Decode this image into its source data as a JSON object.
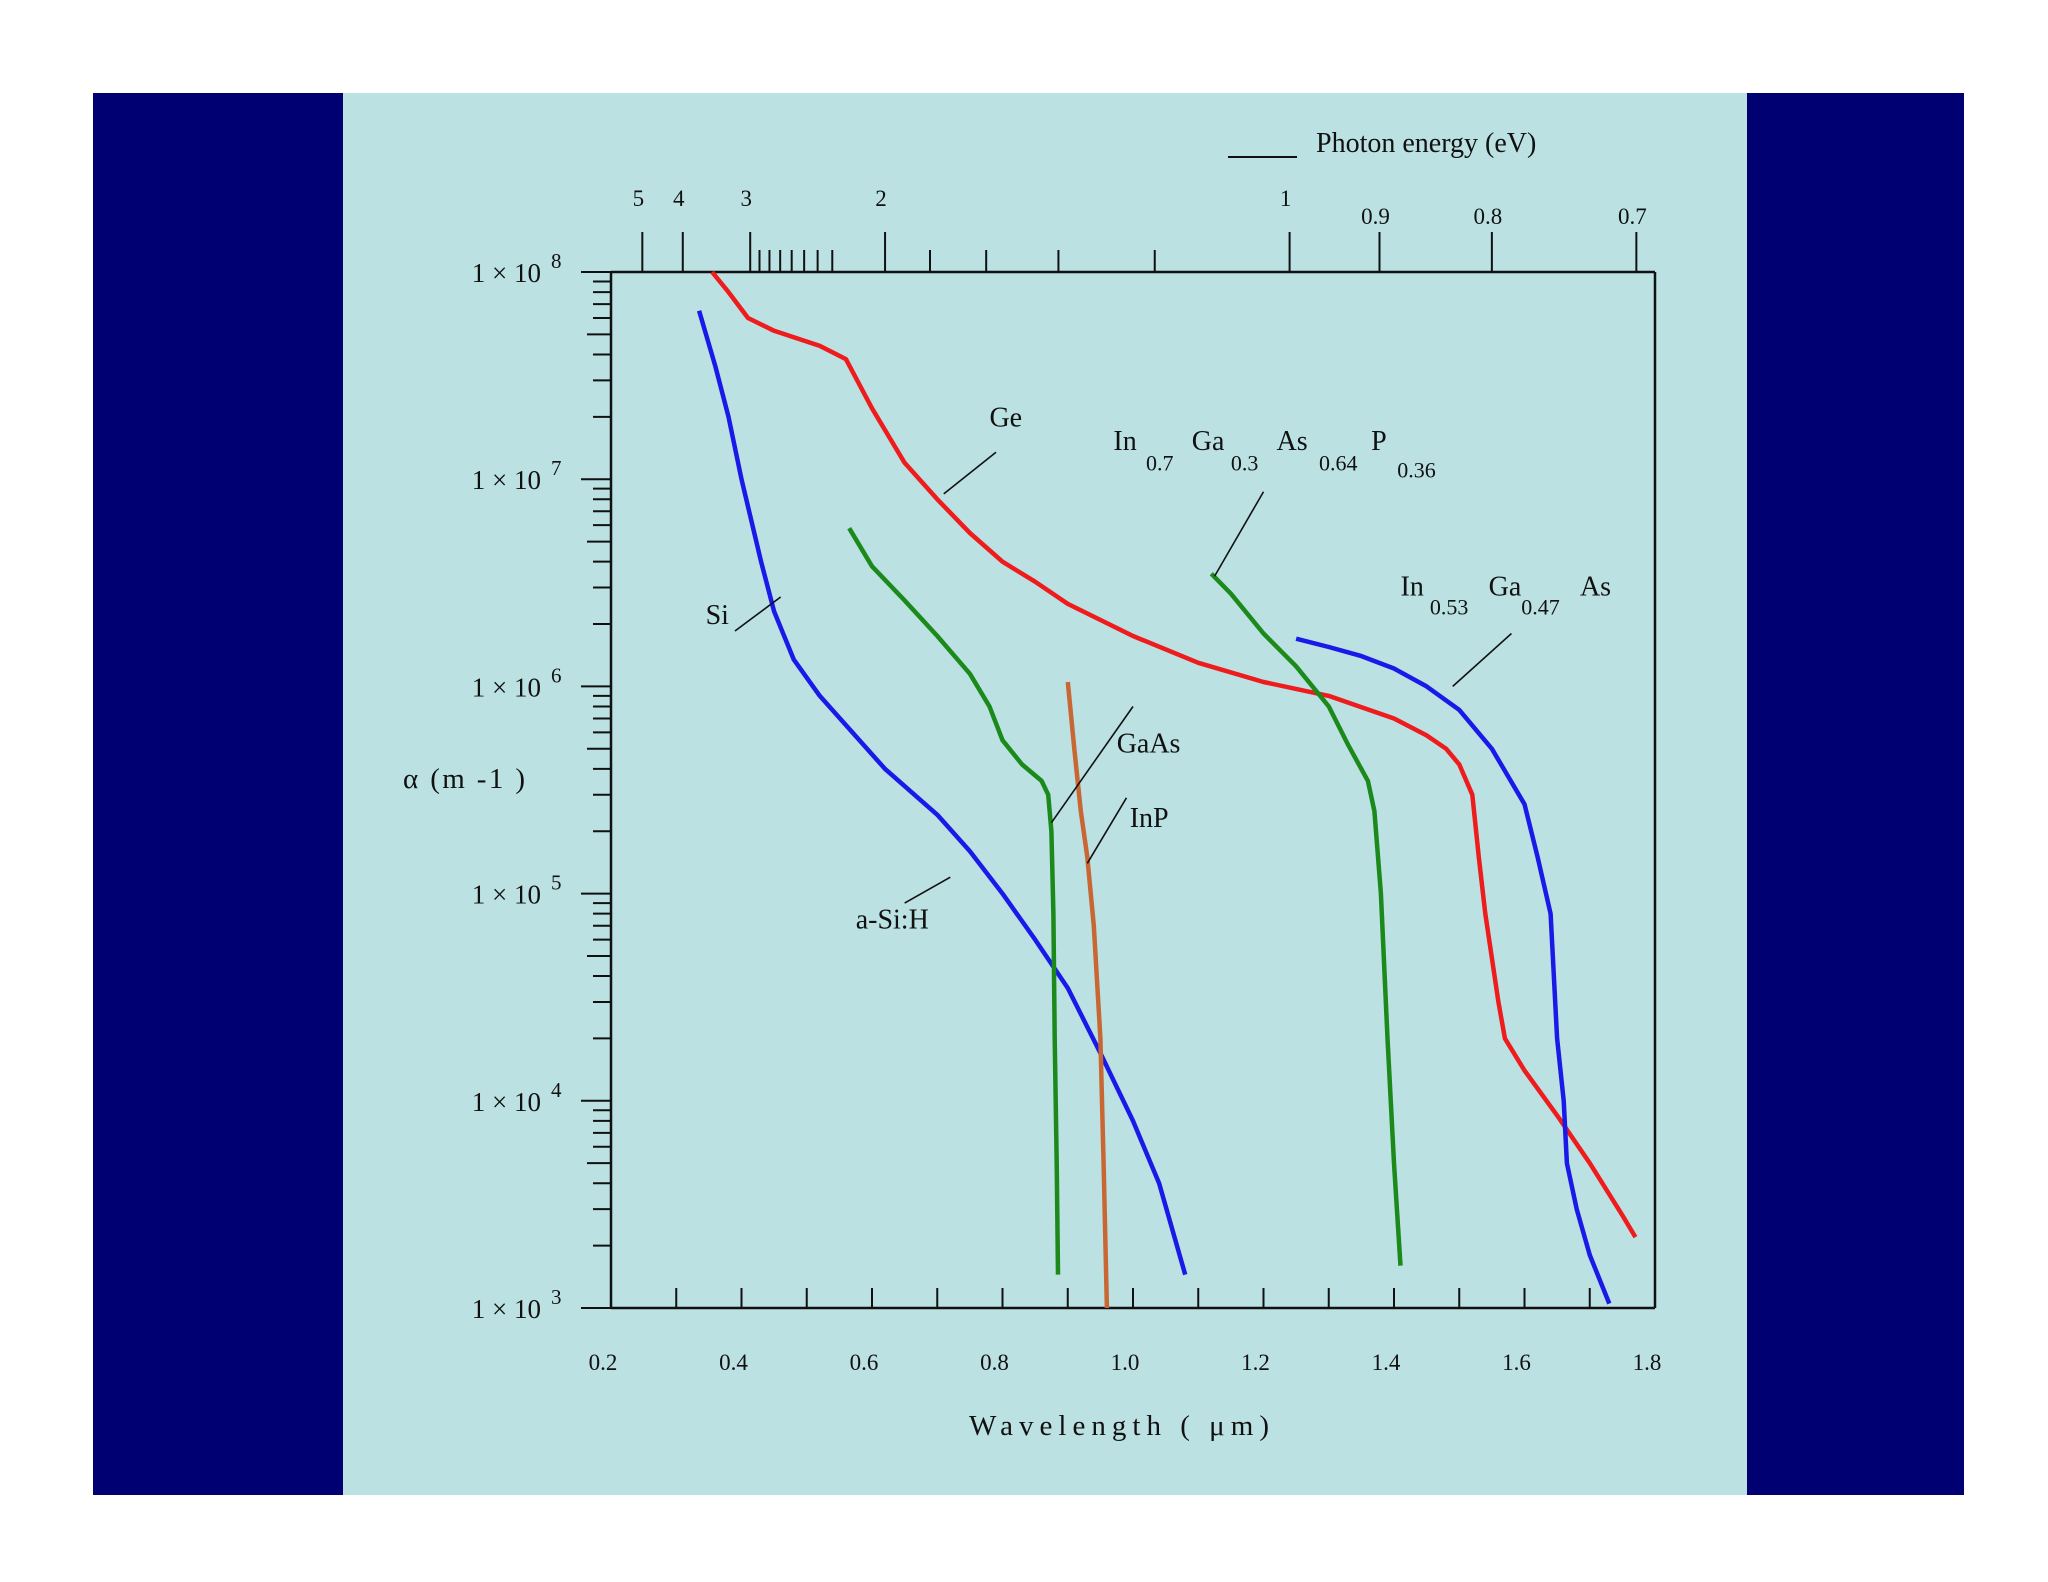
{
  "chart_data": {
    "type": "line",
    "xlabel": "Wavelength ( μm)",
    "ylabel": "α (m -1 )",
    "xlim": [
      0.2,
      1.8
    ],
    "ylim": [
      1000,
      100000000
    ],
    "yscale": "log",
    "grid": false,
    "x_ticks": [
      "0.2",
      "0.4",
      "0.6",
      "0.8",
      "1.0",
      "1.2",
      "1.4",
      "1.6",
      "1.8"
    ],
    "y_ticks": [
      {
        "value": 1000,
        "mantissa": "1 × 10",
        "exp": "3"
      },
      {
        "value": 10000,
        "mantissa": "1 × 10",
        "exp": "4"
      },
      {
        "value": 100000,
        "mantissa": "1 × 10",
        "exp": "5"
      },
      {
        "value": 1000000,
        "mantissa": "1 × 10",
        "exp": "6"
      },
      {
        "value": 10000000,
        "mantissa": "1 × 10",
        "exp": "7"
      },
      {
        "value": 100000000,
        "mantissa": "1 × 10",
        "exp": "8"
      }
    ],
    "top_axis": {
      "label": "Photon energy (eV)",
      "labeled_ticks": [
        {
          "ev": 5,
          "text": "5"
        },
        {
          "ev": 4,
          "text": "4"
        },
        {
          "ev": 3,
          "text": "3"
        },
        {
          "ev": 2,
          "text": "2"
        },
        {
          "ev": 1,
          "text": "1"
        },
        {
          "ev": 0.9,
          "text": "0.9"
        },
        {
          "ev": 0.8,
          "text": "0.8"
        },
        {
          "ev": 0.7,
          "text": "0.7"
        }
      ],
      "minor_ticks_ev": [
        2.9,
        2.8,
        2.7,
        2.6,
        2.5,
        2.4,
        2.3,
        1.8,
        1.6,
        1.4,
        1.2
      ]
    },
    "series": [
      {
        "name": "Ge",
        "color": "#ee1c1c",
        "points": [
          [
            0.355,
            100000000
          ],
          [
            0.38,
            80000000
          ],
          [
            0.41,
            60000000
          ],
          [
            0.45,
            52000000
          ],
          [
            0.52,
            44000000
          ],
          [
            0.56,
            38000000
          ],
          [
            0.6,
            22000000
          ],
          [
            0.65,
            12000000
          ],
          [
            0.7,
            8000000
          ],
          [
            0.75,
            5500000
          ],
          [
            0.8,
            4000000
          ],
          [
            0.85,
            3200000
          ],
          [
            0.9,
            2500000
          ],
          [
            1.0,
            1750000
          ],
          [
            1.1,
            1300000
          ],
          [
            1.2,
            1050000
          ],
          [
            1.3,
            900000
          ],
          [
            1.4,
            700000
          ],
          [
            1.45,
            580000
          ],
          [
            1.48,
            500000
          ],
          [
            1.5,
            420000
          ],
          [
            1.52,
            300000
          ],
          [
            1.53,
            150000
          ],
          [
            1.54,
            80000
          ],
          [
            1.56,
            30000
          ],
          [
            1.57,
            20000
          ],
          [
            1.6,
            14000
          ],
          [
            1.65,
            8500
          ],
          [
            1.7,
            5000
          ],
          [
            1.75,
            2800
          ],
          [
            1.77,
            2200
          ]
        ]
      },
      {
        "name": "Si",
        "color": "#1a1ae8",
        "points": [
          [
            0.335,
            65000000
          ],
          [
            0.36,
            35000000
          ],
          [
            0.38,
            20000000
          ],
          [
            0.4,
            10000000
          ],
          [
            0.43,
            4000000
          ],
          [
            0.45,
            2300000
          ],
          [
            0.48,
            1350000
          ],
          [
            0.52,
            900000
          ],
          [
            0.57,
            600000
          ],
          [
            0.62,
            400000
          ],
          [
            0.7,
            240000
          ],
          [
            0.75,
            160000
          ],
          [
            0.8,
            100000
          ],
          [
            0.85,
            60000
          ],
          [
            0.9,
            35000
          ],
          [
            0.95,
            17000
          ],
          [
            1.0,
            8000
          ],
          [
            1.04,
            4000
          ],
          [
            1.08,
            1450
          ]
        ]
      },
      {
        "name": "GaAs",
        "color": "#1b8a1b",
        "points": [
          [
            0.565,
            5800000
          ],
          [
            0.6,
            3800000
          ],
          [
            0.65,
            2600000
          ],
          [
            0.7,
            1750000
          ],
          [
            0.75,
            1150000
          ],
          [
            0.78,
            800000
          ],
          [
            0.8,
            550000
          ],
          [
            0.83,
            420000
          ],
          [
            0.86,
            350000
          ],
          [
            0.87,
            300000
          ],
          [
            0.875,
            200000
          ],
          [
            0.878,
            80000
          ],
          [
            0.88,
            20000
          ],
          [
            0.883,
            5000
          ],
          [
            0.885,
            1450
          ]
        ]
      },
      {
        "name": "InP",
        "color": "#c86634",
        "points": [
          [
            0.9,
            1050000
          ],
          [
            0.91,
            500000
          ],
          [
            0.92,
            250000
          ],
          [
            0.93,
            150000
          ],
          [
            0.94,
            70000
          ],
          [
            0.95,
            20000
          ],
          [
            0.955,
            5000
          ],
          [
            0.96,
            1000
          ]
        ]
      },
      {
        "name": "In 0.7 Ga 0.3 As 0.64 P 0.36",
        "color": "#1b8a1b",
        "points": [
          [
            1.12,
            3500000
          ],
          [
            1.15,
            2800000
          ],
          [
            1.2,
            1800000
          ],
          [
            1.25,
            1250000
          ],
          [
            1.3,
            800000
          ],
          [
            1.33,
            520000
          ],
          [
            1.36,
            350000
          ],
          [
            1.37,
            250000
          ],
          [
            1.38,
            100000
          ],
          [
            1.39,
            20000
          ],
          [
            1.4,
            5000
          ],
          [
            1.41,
            1600
          ]
        ]
      },
      {
        "name": "In 0.53 Ga 0.47 As",
        "color": "#1a1ae8",
        "points": [
          [
            1.25,
            1700000
          ],
          [
            1.3,
            1550000
          ],
          [
            1.35,
            1400000
          ],
          [
            1.4,
            1220000
          ],
          [
            1.45,
            1000000
          ],
          [
            1.5,
            770000
          ],
          [
            1.55,
            500000
          ],
          [
            1.6,
            270000
          ],
          [
            1.62,
            150000
          ],
          [
            1.64,
            80000
          ],
          [
            1.65,
            20000
          ],
          [
            1.66,
            10000
          ],
          [
            1.665,
            5000
          ],
          [
            1.68,
            3000
          ],
          [
            1.7,
            1800
          ],
          [
            1.73,
            1050
          ]
        ]
      }
    ],
    "annotations": [
      {
        "text": "Ge",
        "x": 0.78,
        "y": 18000000
      },
      {
        "text": "Si",
        "x": 0.345,
        "y": 2000000
      },
      {
        "text": "GaAs",
        "x": 0.975,
        "y": 480000
      },
      {
        "text": "InP",
        "x": 0.995,
        "y": 210000
      },
      {
        "text": "a-Si:H",
        "x": 0.575,
        "y": 68000
      },
      {
        "text": "In",
        "x": 0.97,
        "y": 13800000
      },
      {
        "text": "0.7",
        "x": 1.02,
        "y": 11000000
      },
      {
        "text": "Ga",
        "x": 1.09,
        "y": 13800000
      },
      {
        "text": "0.3",
        "x": 1.15,
        "y": 11000000
      },
      {
        "text": "As",
        "x": 1.22,
        "y": 13800000
      },
      {
        "text": "0.64",
        "x": 1.285,
        "y": 11000000
      },
      {
        "text": "P",
        "x": 1.365,
        "y": 13800000
      },
      {
        "text": "0.36",
        "x": 1.405,
        "y": 10200000
      },
      {
        "text": "In",
        "x": 1.41,
        "y": 2750000
      },
      {
        "text": "0.53",
        "x": 1.455,
        "y": 2220000
      },
      {
        "text": "Ga",
        "x": 1.545,
        "y": 2750000
      },
      {
        "text": "0.47",
        "x": 1.595,
        "y": 2220000
      },
      {
        "text": "As",
        "x": 1.685,
        "y": 2750000
      }
    ],
    "leader_lines": [
      [
        [
          0.71,
          8500000
        ],
        [
          0.79,
          13500000
        ]
      ],
      [
        [
          0.39,
          1850000
        ],
        [
          0.46,
          2700000
        ]
      ],
      [
        [
          0.875,
          220000
        ],
        [
          1.0,
          800000
        ]
      ],
      [
        [
          0.93,
          140000
        ],
        [
          0.99,
          290000
        ]
      ],
      [
        [
          0.65,
          90000
        ],
        [
          0.72,
          120000
        ]
      ],
      [
        [
          1.125,
          3400000
        ],
        [
          1.2,
          8700000
        ]
      ],
      [
        [
          1.49,
          1000000
        ],
        [
          1.58,
          1800000
        ]
      ]
    ]
  }
}
